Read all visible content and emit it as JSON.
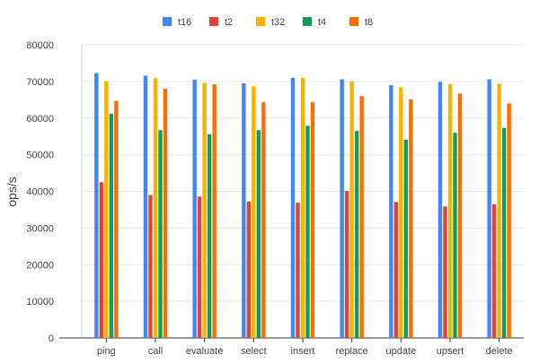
{
  "chart_data": {
    "type": "bar",
    "title": "",
    "xlabel": "",
    "ylabel": "ops/s",
    "ylim": [
      0,
      80000
    ],
    "yticks": [
      0,
      10000,
      20000,
      30000,
      40000,
      50000,
      60000,
      70000,
      80000
    ],
    "ytick_labels": [
      "0",
      "10000",
      "20000",
      "30000",
      "40000",
      "50000",
      "60000",
      "70000",
      "80000"
    ],
    "grid": true,
    "legend_position": "top-center",
    "categories": [
      "ping",
      "call",
      "evaluate",
      "select",
      "insert",
      "replace",
      "update",
      "upsert",
      "delete"
    ],
    "series": [
      {
        "name": "t16",
        "color": "#4285f4",
        "values": [
          72300,
          71600,
          70500,
          69500,
          71000,
          70600,
          69000,
          69900,
          70600
        ]
      },
      {
        "name": "t2",
        "color": "#db4437",
        "values": [
          42500,
          39000,
          38600,
          37200,
          36900,
          40100,
          37100,
          35900,
          36500
        ]
      },
      {
        "name": "t32",
        "color": "#f4b400",
        "values": [
          70100,
          70900,
          69600,
          68700,
          71000,
          70000,
          68400,
          69300,
          69400
        ]
      },
      {
        "name": "t4",
        "color": "#0f9d58",
        "values": [
          61200,
          56700,
          55600,
          56700,
          57900,
          56500,
          54100,
          56000,
          57300
        ]
      },
      {
        "name": "t8",
        "color": "#ff6d00",
        "values": [
          64700,
          68000,
          69200,
          64300,
          64300,
          66000,
          65100,
          66700,
          64000
        ]
      }
    ]
  }
}
